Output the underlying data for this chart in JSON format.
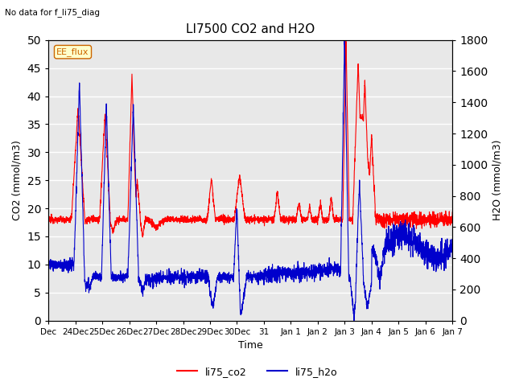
{
  "title": "LI7500 CO2 and H2O",
  "subtitle": "No data for f_li75_diag",
  "xlabel": "Time",
  "ylabel_left": "CO2 (mmol/m3)",
  "ylabel_right": "H2O (mmol/m3)",
  "ylim_left": [
    0,
    50
  ],
  "ylim_right": [
    0,
    1800
  ],
  "color_co2": "#ff0000",
  "color_h2o": "#0000cc",
  "legend_label_co2": "li75_co2",
  "legend_label_h2o": "li75_h2o",
  "annotation_text": "EE_flux",
  "xtick_labels": [
    "Dec",
    "24Dec",
    "25Dec",
    "26Dec",
    "27Dec",
    "28Dec",
    "29Dec",
    "30Dec",
    "31",
    "Jan 1",
    "Jan 2",
    "Jan 3",
    "Jan 4",
    "Jan 5",
    "Jan 6",
    "Jan 7"
  ],
  "background_color": "#e8e8e8",
  "fig_width": 6.4,
  "fig_height": 4.8,
  "fig_dpi": 100
}
